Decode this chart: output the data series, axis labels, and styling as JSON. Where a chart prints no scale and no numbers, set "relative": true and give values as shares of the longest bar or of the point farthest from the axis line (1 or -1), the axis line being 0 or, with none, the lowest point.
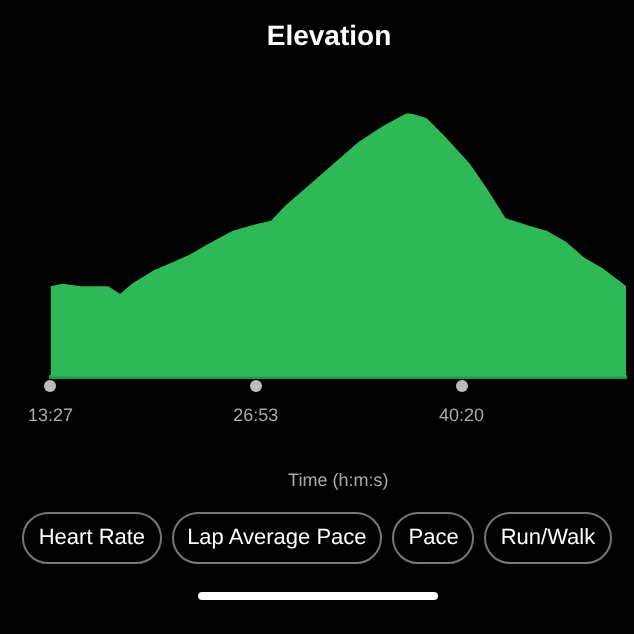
{
  "chart_data": {
    "type": "area",
    "title": "Elevation",
    "xlabel": "Time (h:m:s)",
    "relative": true,
    "x": [
      13.45,
      14.25,
      15.44,
      17.22,
      18.0,
      18.8,
      20.19,
      21.38,
      22.57,
      23.76,
      25.34,
      26.53,
      27.92,
      28.9,
      30.49,
      32.08,
      33.66,
      35.24,
      36.83,
      38.02,
      39.21,
      40.79,
      41.98,
      43.17,
      44.75,
      45.94,
      47.13,
      48.32,
      49.51,
      51.1
    ],
    "series": [
      {
        "color": "#2fb857",
        "values": [
          0.34,
          0.35,
          0.34,
          0.34,
          0.31,
          0.35,
          0.4,
          0.43,
          0.46,
          0.5,
          0.55,
          0.57,
          0.59,
          0.65,
          0.73,
          0.81,
          0.89,
          0.95,
          1.0,
          0.98,
          0.91,
          0.81,
          0.71,
          0.6,
          0.57,
          0.55,
          0.51,
          0.45,
          0.41,
          0.34
        ]
      }
    ],
    "xlim": [
      13.45,
      51.1
    ],
    "xticks": [
      {
        "value": 13.45,
        "label": "13:27"
      },
      {
        "value": 26.883,
        "label": "26:53"
      },
      {
        "value": 40.333,
        "label": "40:20"
      }
    ],
    "grid": false,
    "legend": false,
    "marker": "none",
    "annotations": [
      "Heart Rate",
      "Lap Average Pace",
      "Pace",
      "Run/Walk"
    ]
  }
}
